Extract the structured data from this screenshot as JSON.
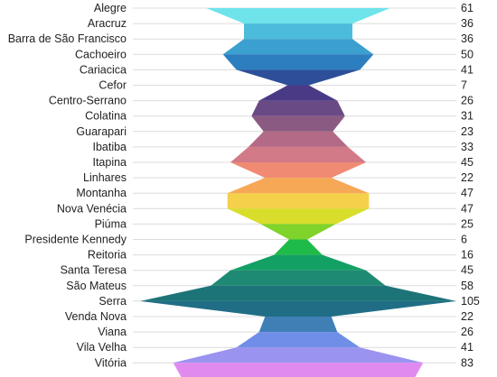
{
  "chart_data": {
    "type": "area",
    "orientation": "horizontal-symmetric",
    "categories": [
      "Alegre",
      "Aracruz",
      "Barra de São Francisco",
      "Cachoeiro",
      "Cariacica",
      "Cefor",
      "Centro-Serrano",
      "Colatina",
      "Guarapari",
      "Ibatiba",
      "Itapina",
      "Linhares",
      "Montanha",
      "Nova Venécia",
      "Piúma",
      "Presidente Kennedy",
      "Reitoria",
      "Santa Teresa",
      "São Mateus",
      "Serra",
      "Venda Nova",
      "Viana",
      "Vila Velha",
      "Vitória"
    ],
    "values": [
      61,
      36,
      36,
      50,
      41,
      7,
      26,
      31,
      23,
      33,
      45,
      22,
      47,
      47,
      25,
      6,
      16,
      45,
      58,
      105,
      22,
      26,
      41,
      83
    ],
    "value_labels": [
      "61",
      "36",
      "36",
      "50",
      "41",
      "7",
      "26",
      "31",
      "23",
      "33",
      "45",
      "22",
      "47",
      "47",
      "25",
      "6",
      "16",
      "45",
      "58",
      "105",
      "22",
      "26",
      "41",
      "83"
    ],
    "colors": [
      "#6ee4ea",
      "#4cbcdc",
      "#3b9fd0",
      "#2d7ebf",
      "#2d4f9a",
      "#4a3a86",
      "#6a4a84",
      "#8a5a82",
      "#b26a86",
      "#d27a88",
      "#f08a72",
      "#f6a857",
      "#f5d04a",
      "#d8de2b",
      "#7fd32a",
      "#1fbb48",
      "#13a065",
      "#1f8a73",
      "#1d7478",
      "#206e86",
      "#3f7fb6",
      "#6f8ee8",
      "#9b93f0",
      "#e08af0"
    ],
    "xlim": [
      -105,
      105
    ],
    "grid": true,
    "legend": "none"
  }
}
